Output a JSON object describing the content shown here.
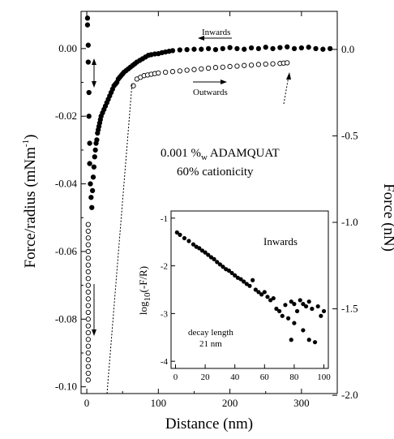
{
  "chart_data": [
    {
      "type": "scatter",
      "xlabel": "Distance (nm)",
      "ylabel": "Force/radius (mNm",
      "ylabel_sup": "-1",
      "ylabel_close": ")",
      "y2label": "Force (nN)",
      "xlim": [
        -8,
        350
      ],
      "ylim": [
        -0.102,
        0.011
      ],
      "y2lim": [
        -1.99,
        0.22
      ],
      "x_ticks": [
        0,
        100,
        200,
        300
      ],
      "x_tick_labels": [
        "0",
        "100",
        "200",
        "300"
      ],
      "y_ticks": [
        0.0,
        -0.02,
        -0.04,
        -0.06,
        -0.08,
        -0.1
      ],
      "y_tick_labels": [
        "0.00",
        "-0.02",
        "-0.04",
        "-0.06",
        "-0.08",
        "-0.10"
      ],
      "y2_ticks": [
        0.0,
        -0.5,
        -1.0,
        -1.5,
        -2.0
      ],
      "y2_tick_labels": [
        "0.0",
        "-0.5",
        "-1.0",
        "-1.5",
        "-2.0"
      ],
      "annotation_main": "0.001 %",
      "annotation_sub": "w",
      "annotation_rest": " ADAMQUAT",
      "annotation_line2": "60% cationicity",
      "arrow_inwards": "Inwards",
      "arrow_outwards": "Outwards",
      "series": [
        {
          "name": "Inwards",
          "marker": "filled-circle",
          "x": [
            1,
            1,
            2,
            2,
            3,
            3,
            4,
            4,
            5,
            6,
            7,
            8,
            9,
            10,
            11,
            12,
            13,
            14,
            15,
            16,
            17,
            18,
            19,
            20,
            22,
            24,
            26,
            28,
            30,
            32,
            34,
            36,
            38,
            40,
            42,
            44,
            46,
            48,
            50,
            52,
            55,
            58,
            61,
            64,
            67,
            70,
            74,
            78,
            82,
            86,
            90,
            95,
            100,
            105,
            110,
            115,
            120,
            130,
            140,
            150,
            160,
            170,
            180,
            190,
            200,
            210,
            220,
            230,
            240,
            250,
            260,
            270,
            280,
            290,
            300,
            310,
            320,
            330,
            340
          ],
          "y": [
            0.009,
            0.007,
            0.001,
            -0.004,
            -0.013,
            -0.02,
            -0.028,
            -0.034,
            -0.04,
            -0.044,
            -0.047,
            -0.042,
            -0.038,
            -0.035,
            -0.032,
            -0.03,
            -0.028,
            -0.027,
            -0.025,
            -0.024,
            -0.023,
            -0.022,
            -0.021,
            -0.02,
            -0.019,
            -0.018,
            -0.017,
            -0.016,
            -0.015,
            -0.014,
            -0.013,
            -0.012,
            -0.011,
            -0.0105,
            -0.01,
            -0.009,
            -0.0085,
            -0.008,
            -0.0075,
            -0.007,
            -0.0065,
            -0.006,
            -0.0055,
            -0.005,
            -0.0045,
            -0.004,
            -0.0035,
            -0.003,
            -0.0025,
            -0.002,
            -0.0018,
            -0.0016,
            -0.0015,
            -0.0012,
            -0.001,
            -0.0008,
            -0.0006,
            -0.0004,
            -0.0003,
            -0.0002,
            -0.0002,
            0.0,
            -0.0003,
            0.0,
            0.0003,
            0.0,
            -0.0002,
            0.0002,
            0.0,
            0.0004,
            0.0,
            0.0003,
            0.0005,
            0.0,
            0.0002,
            0.0004,
            0.0,
            -0.0002,
            0.0
          ]
        },
        {
          "name": "Outwards",
          "marker": "open-circle",
          "x": [
            2,
            2,
            2,
            2,
            2,
            2,
            2,
            2,
            2,
            2,
            2,
            2,
            2,
            2,
            2,
            2,
            2,
            2,
            2,
            2,
            2,
            2,
            2,
            2,
            65,
            70,
            75,
            80,
            85,
            90,
            95,
            100,
            110,
            120,
            130,
            140,
            150,
            160,
            170,
            180,
            190,
            200,
            210,
            220,
            230,
            240,
            250,
            260,
            270,
            275,
            280
          ],
          "y": [
            -0.052,
            -0.054,
            -0.056,
            -0.058,
            -0.06,
            -0.062,
            -0.064,
            -0.066,
            -0.068,
            -0.07,
            -0.072,
            -0.074,
            -0.076,
            -0.078,
            -0.08,
            -0.082,
            -0.084,
            -0.086,
            -0.088,
            -0.09,
            -0.092,
            -0.094,
            -0.096,
            -0.098,
            -0.011,
            -0.009,
            -0.0085,
            -0.008,
            -0.0078,
            -0.0076,
            -0.0074,
            -0.0072,
            -0.007,
            -0.0068,
            -0.0066,
            -0.0064,
            -0.0062,
            -0.006,
            -0.0058,
            -0.0056,
            -0.0055,
            -0.0053,
            -0.0052,
            -0.005,
            -0.0049,
            -0.0047,
            -0.0046,
            -0.0045,
            -0.0044,
            -0.0043,
            -0.0042
          ]
        }
      ]
    },
    {
      "type": "scatter",
      "title": "Inwards",
      "ylabel": "log",
      "ylabel_sub": "10",
      "ylabel_rest": "(-F/R)",
      "annotation_line1": "decay length",
      "annotation_line2": "21 nm",
      "xlim": [
        -3,
        103
      ],
      "ylim": [
        -4.15,
        -0.85
      ],
      "x_ticks": [
        0,
        20,
        40,
        60,
        80,
        100
      ],
      "x_tick_labels": [
        "0",
        "20",
        "40",
        "60",
        "80",
        "100"
      ],
      "y_ticks": [
        -1,
        -2,
        -3,
        -4
      ],
      "y_tick_labels": [
        "-1",
        "-2",
        "-3",
        "-4"
      ],
      "series": [
        {
          "name": "Inwards",
          "marker": "filled-circle",
          "x": [
            1,
            3,
            6,
            9,
            12,
            14,
            16,
            18,
            20,
            22,
            24,
            26,
            28,
            30,
            32,
            34,
            36,
            38,
            40,
            42,
            44,
            46,
            48,
            50,
            52,
            54,
            56,
            58,
            60,
            62,
            64,
            66,
            68,
            70,
            72,
            74,
            76,
            78,
            78,
            80,
            80,
            82,
            84,
            86,
            86,
            88,
            90,
            90,
            92,
            94,
            96,
            98,
            100
          ],
          "y": [
            -1.3,
            -1.35,
            -1.42,
            -1.48,
            -1.55,
            -1.6,
            -1.63,
            -1.68,
            -1.72,
            -1.77,
            -1.82,
            -1.86,
            -1.92,
            -1.97,
            -2.02,
            -2.07,
            -2.1,
            -2.15,
            -2.2,
            -2.25,
            -2.28,
            -2.33,
            -2.38,
            -2.42,
            -2.3,
            -2.5,
            -2.55,
            -2.6,
            -2.55,
            -2.65,
            -2.72,
            -2.68,
            -2.9,
            -2.95,
            -3.05,
            -2.82,
            -3.1,
            -2.75,
            -3.55,
            -2.8,
            -3.2,
            -2.95,
            -2.72,
            -3.35,
            -2.8,
            -2.85,
            -2.75,
            -3.55,
            -2.9,
            -3.6,
            -2.85,
            -3.05,
            -2.95
          ]
        }
      ]
    }
  ]
}
